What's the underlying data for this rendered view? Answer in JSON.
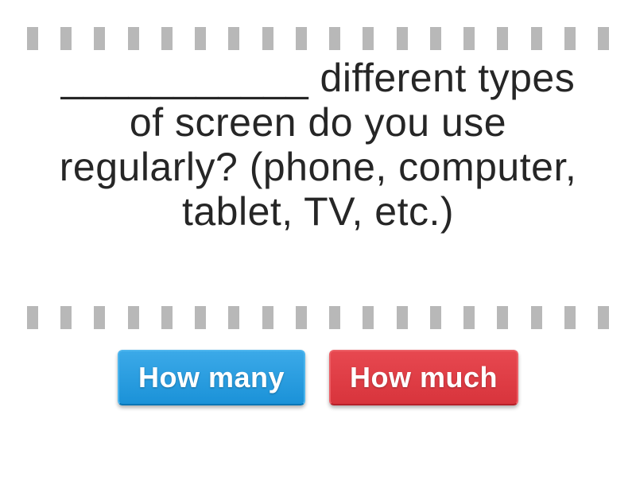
{
  "question": {
    "text": "___________ different types of screen do you use regularly? (phone, computer, tablet, TV, etc.)",
    "fontsize": 50,
    "color": "#262626"
  },
  "answers": [
    {
      "label": "How many",
      "color_class": "blue",
      "bg_gradient_start": "#3ba9e8",
      "bg_gradient_end": "#1b92d8"
    },
    {
      "label": "How much",
      "color_class": "red",
      "bg_gradient_start": "#e74850",
      "bg_gradient_end": "#d8343c"
    }
  ],
  "border": {
    "dot_count": 18,
    "dot_color": "#b8b8b8",
    "dot_width": 14,
    "dot_height": 29
  }
}
